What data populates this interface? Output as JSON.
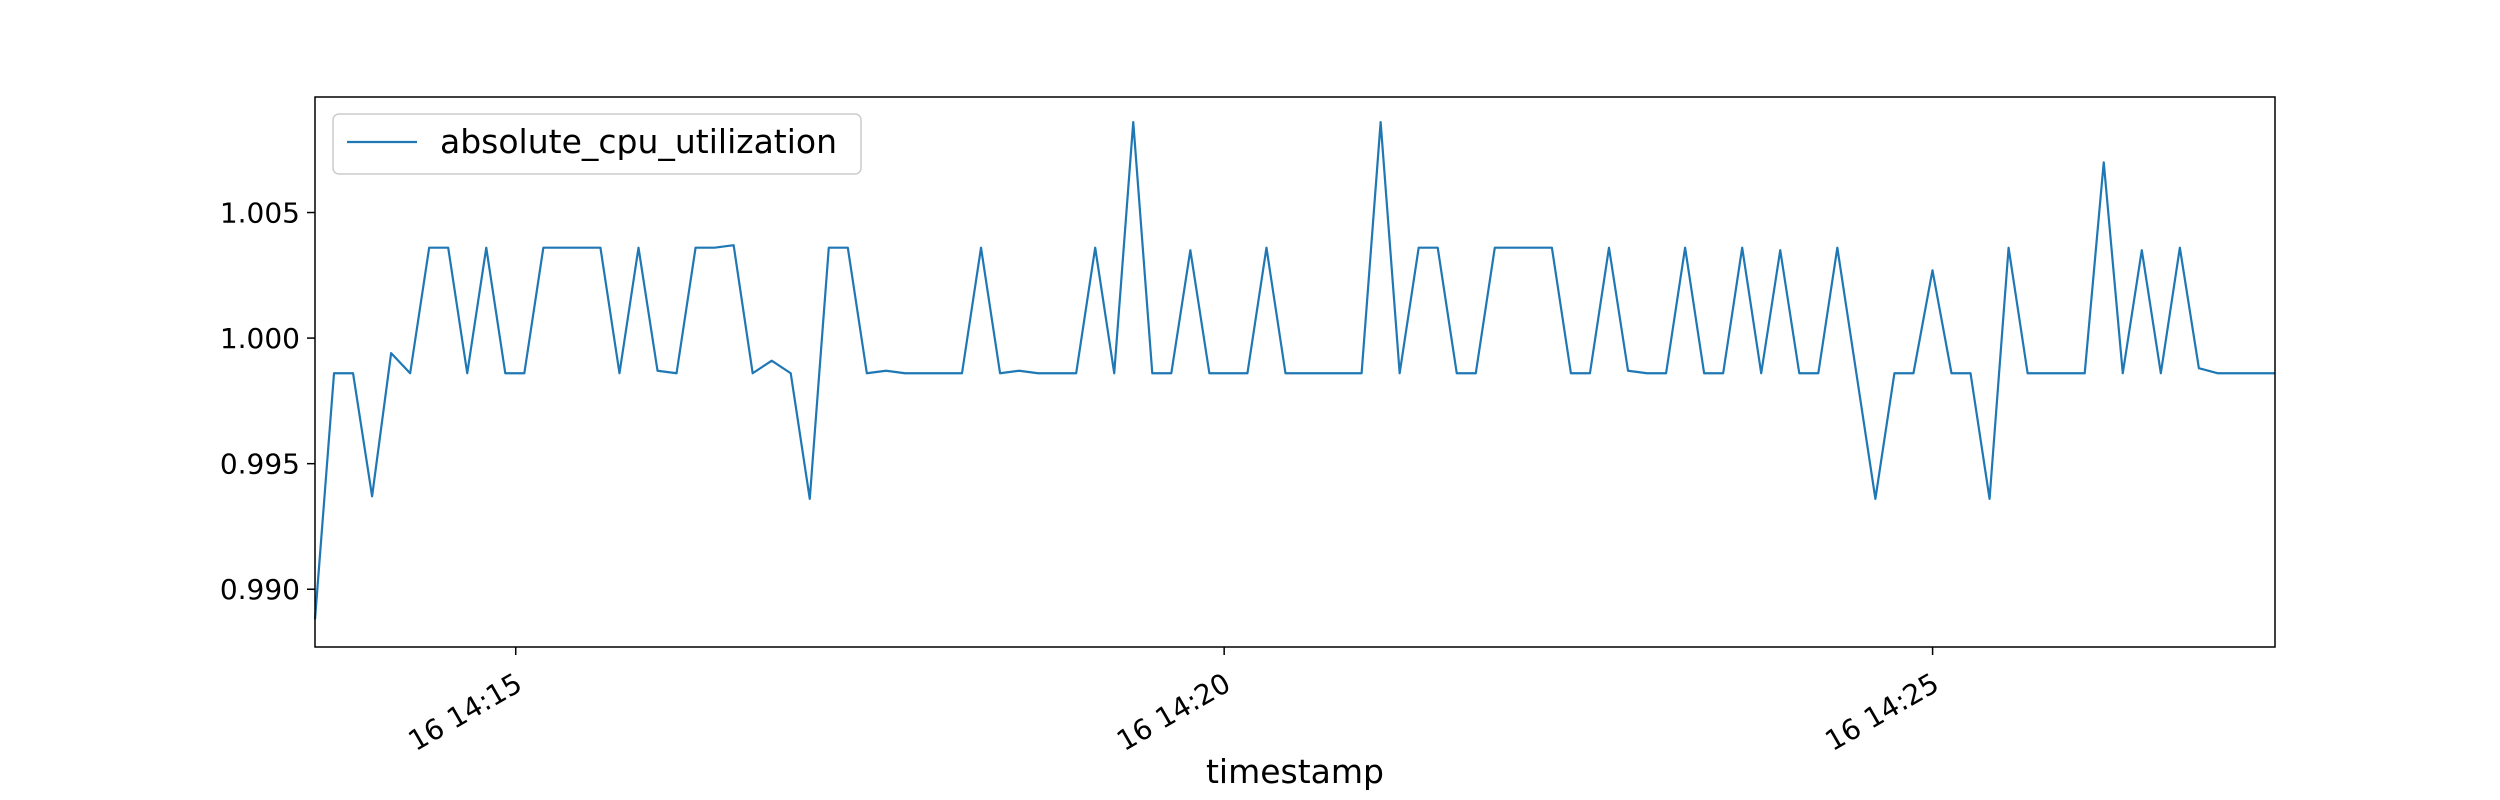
{
  "chart_data": {
    "type": "line",
    "title": "",
    "xlabel": "timestamp",
    "ylabel": "",
    "x_ticks": [
      "16 14:15",
      "16 14:20",
      "16 14:25"
    ],
    "x_tick_minutes": [
      15,
      20,
      25
    ],
    "xlim": [
      "2024-01-16 14:13:35",
      "2024-01-16 14:27:25"
    ],
    "y_ticks": [
      "0.990",
      "0.995",
      "1.000",
      "1.005"
    ],
    "y_tick_values": [
      0.99,
      0.995,
      1.0,
      1.005
    ],
    "ylim": [
      0.9877,
      1.0096
    ],
    "grid": false,
    "legend_position": "top-left",
    "series": [
      {
        "name": "absolute_cpu_utilization",
        "color": "#1f77b4",
        "x_range": [
          "2024-01-16 14:13:35",
          "2024-01-16 14:27:25"
        ],
        "values": [
          0.9888,
          0.9986,
          0.9986,
          0.9937,
          0.9994,
          0.9986,
          1.0036,
          1.0036,
          0.9986,
          1.0036,
          0.9986,
          0.9986,
          1.0036,
          1.0036,
          1.0036,
          1.0036,
          0.9986,
          1.0036,
          0.9987,
          0.9986,
          1.0036,
          1.0036,
          1.0037,
          0.9986,
          0.9991,
          0.9986,
          0.9936,
          1.0036,
          1.0036,
          0.9986,
          0.9987,
          0.9986,
          0.9986,
          0.9986,
          0.9986,
          1.0036,
          0.9986,
          0.9987,
          0.9986,
          0.9986,
          0.9986,
          1.0036,
          0.9986,
          1.0086,
          0.9986,
          0.9986,
          1.0035,
          0.9986,
          0.9986,
          0.9986,
          1.0036,
          0.9986,
          0.9986,
          0.9986,
          0.9986,
          0.9986,
          1.0086,
          0.9986,
          1.0036,
          1.0036,
          0.9986,
          0.9986,
          1.0036,
          1.0036,
          1.0036,
          1.0036,
          0.9986,
          0.9986,
          1.0036,
          0.9987,
          0.9986,
          0.9986,
          1.0036,
          0.9986,
          0.9986,
          1.0036,
          0.9986,
          1.0035,
          0.9986,
          0.9986,
          1.0036,
          0.9986,
          0.9936,
          0.9986,
          0.9986,
          1.0027,
          0.9986,
          0.9986,
          0.9936,
          1.0036,
          0.9986,
          0.9986,
          0.9986,
          0.9986,
          1.007,
          0.9986,
          1.0035,
          0.9986,
          1.0036,
          0.9988,
          0.9986,
          0.9986,
          0.9986,
          0.9986
        ]
      }
    ]
  }
}
